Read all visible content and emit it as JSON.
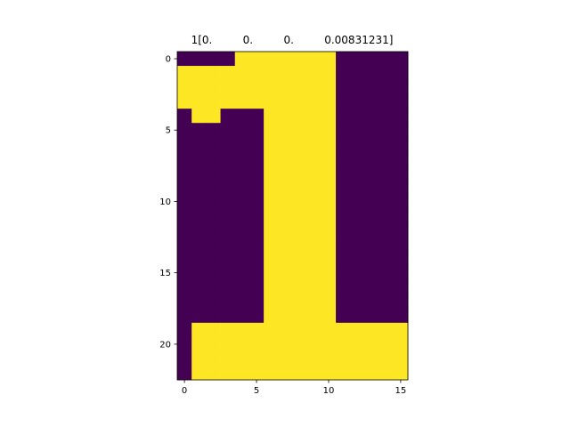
{
  "chart_data": {
    "type": "heatmap",
    "title": "1[0.         0.         0.         0.00831231]",
    "xlabel": "",
    "ylabel": "",
    "colormap": "viridis",
    "colors": {
      "low": "#440154",
      "high": "#fde725"
    },
    "x_ticks": [
      0,
      5,
      10,
      15
    ],
    "y_ticks": [
      0,
      5,
      10,
      15,
      20
    ],
    "xlim": [
      -0.5,
      15.5
    ],
    "ylim": [
      22.5,
      -0.5
    ],
    "grid": false,
    "matrix": [
      [
        0,
        0,
        0,
        0,
        1,
        1,
        1,
        1,
        1,
        1,
        1,
        0,
        0,
        0,
        0,
        0
      ],
      [
        1,
        1,
        1,
        1,
        1,
        1,
        1,
        1,
        1,
        1,
        1,
        0,
        0,
        0,
        0,
        0
      ],
      [
        1,
        1,
        1,
        1,
        1,
        1,
        1,
        1,
        1,
        1,
        1,
        0,
        0,
        0,
        0,
        0
      ],
      [
        1,
        1,
        1,
        1,
        1,
        1,
        1,
        1,
        1,
        1,
        1,
        0,
        0,
        0,
        0,
        0
      ],
      [
        0,
        1,
        1,
        0,
        0,
        0,
        1,
        1,
        1,
        1,
        1,
        0,
        0,
        0,
        0,
        0
      ],
      [
        0,
        0,
        0,
        0,
        0,
        0,
        1,
        1,
        1,
        1,
        1,
        0,
        0,
        0,
        0,
        0
      ],
      [
        0,
        0,
        0,
        0,
        0,
        0,
        1,
        1,
        1,
        1,
        1,
        0,
        0,
        0,
        0,
        0
      ],
      [
        0,
        0,
        0,
        0,
        0,
        0,
        1,
        1,
        1,
        1,
        1,
        0,
        0,
        0,
        0,
        0
      ],
      [
        0,
        0,
        0,
        0,
        0,
        0,
        1,
        1,
        1,
        1,
        1,
        0,
        0,
        0,
        0,
        0
      ],
      [
        0,
        0,
        0,
        0,
        0,
        0,
        1,
        1,
        1,
        1,
        1,
        0,
        0,
        0,
        0,
        0
      ],
      [
        0,
        0,
        0,
        0,
        0,
        0,
        1,
        1,
        1,
        1,
        1,
        0,
        0,
        0,
        0,
        0
      ],
      [
        0,
        0,
        0,
        0,
        0,
        0,
        1,
        1,
        1,
        1,
        1,
        0,
        0,
        0,
        0,
        0
      ],
      [
        0,
        0,
        0,
        0,
        0,
        0,
        1,
        1,
        1,
        1,
        1,
        0,
        0,
        0,
        0,
        0
      ],
      [
        0,
        0,
        0,
        0,
        0,
        0,
        1,
        1,
        1,
        1,
        1,
        0,
        0,
        0,
        0,
        0
      ],
      [
        0,
        0,
        0,
        0,
        0,
        0,
        1,
        1,
        1,
        1,
        1,
        0,
        0,
        0,
        0,
        0
      ],
      [
        0,
        0,
        0,
        0,
        0,
        0,
        1,
        1,
        1,
        1,
        1,
        0,
        0,
        0,
        0,
        0
      ],
      [
        0,
        0,
        0,
        0,
        0,
        0,
        1,
        1,
        1,
        1,
        1,
        0,
        0,
        0,
        0,
        0
      ],
      [
        0,
        0,
        0,
        0,
        0,
        0,
        1,
        1,
        1,
        1,
        1,
        0,
        0,
        0,
        0,
        0
      ],
      [
        0,
        0,
        0,
        0,
        0,
        0,
        1,
        1,
        1,
        1,
        1,
        0,
        0,
        0,
        0,
        0
      ],
      [
        0,
        1,
        1,
        1,
        1,
        1,
        1,
        1,
        1,
        1,
        1,
        1,
        1,
        1,
        1,
        1
      ],
      [
        0,
        1,
        1,
        1,
        1,
        1,
        1,
        1,
        1,
        1,
        1,
        1,
        1,
        1,
        1,
        1
      ],
      [
        0,
        1,
        1,
        1,
        1,
        1,
        1,
        1,
        1,
        1,
        1,
        1,
        1,
        1,
        1,
        1
      ],
      [
        0,
        1,
        1,
        1,
        1,
        1,
        1,
        1,
        1,
        1,
        1,
        1,
        1,
        1,
        1,
        1
      ]
    ]
  }
}
